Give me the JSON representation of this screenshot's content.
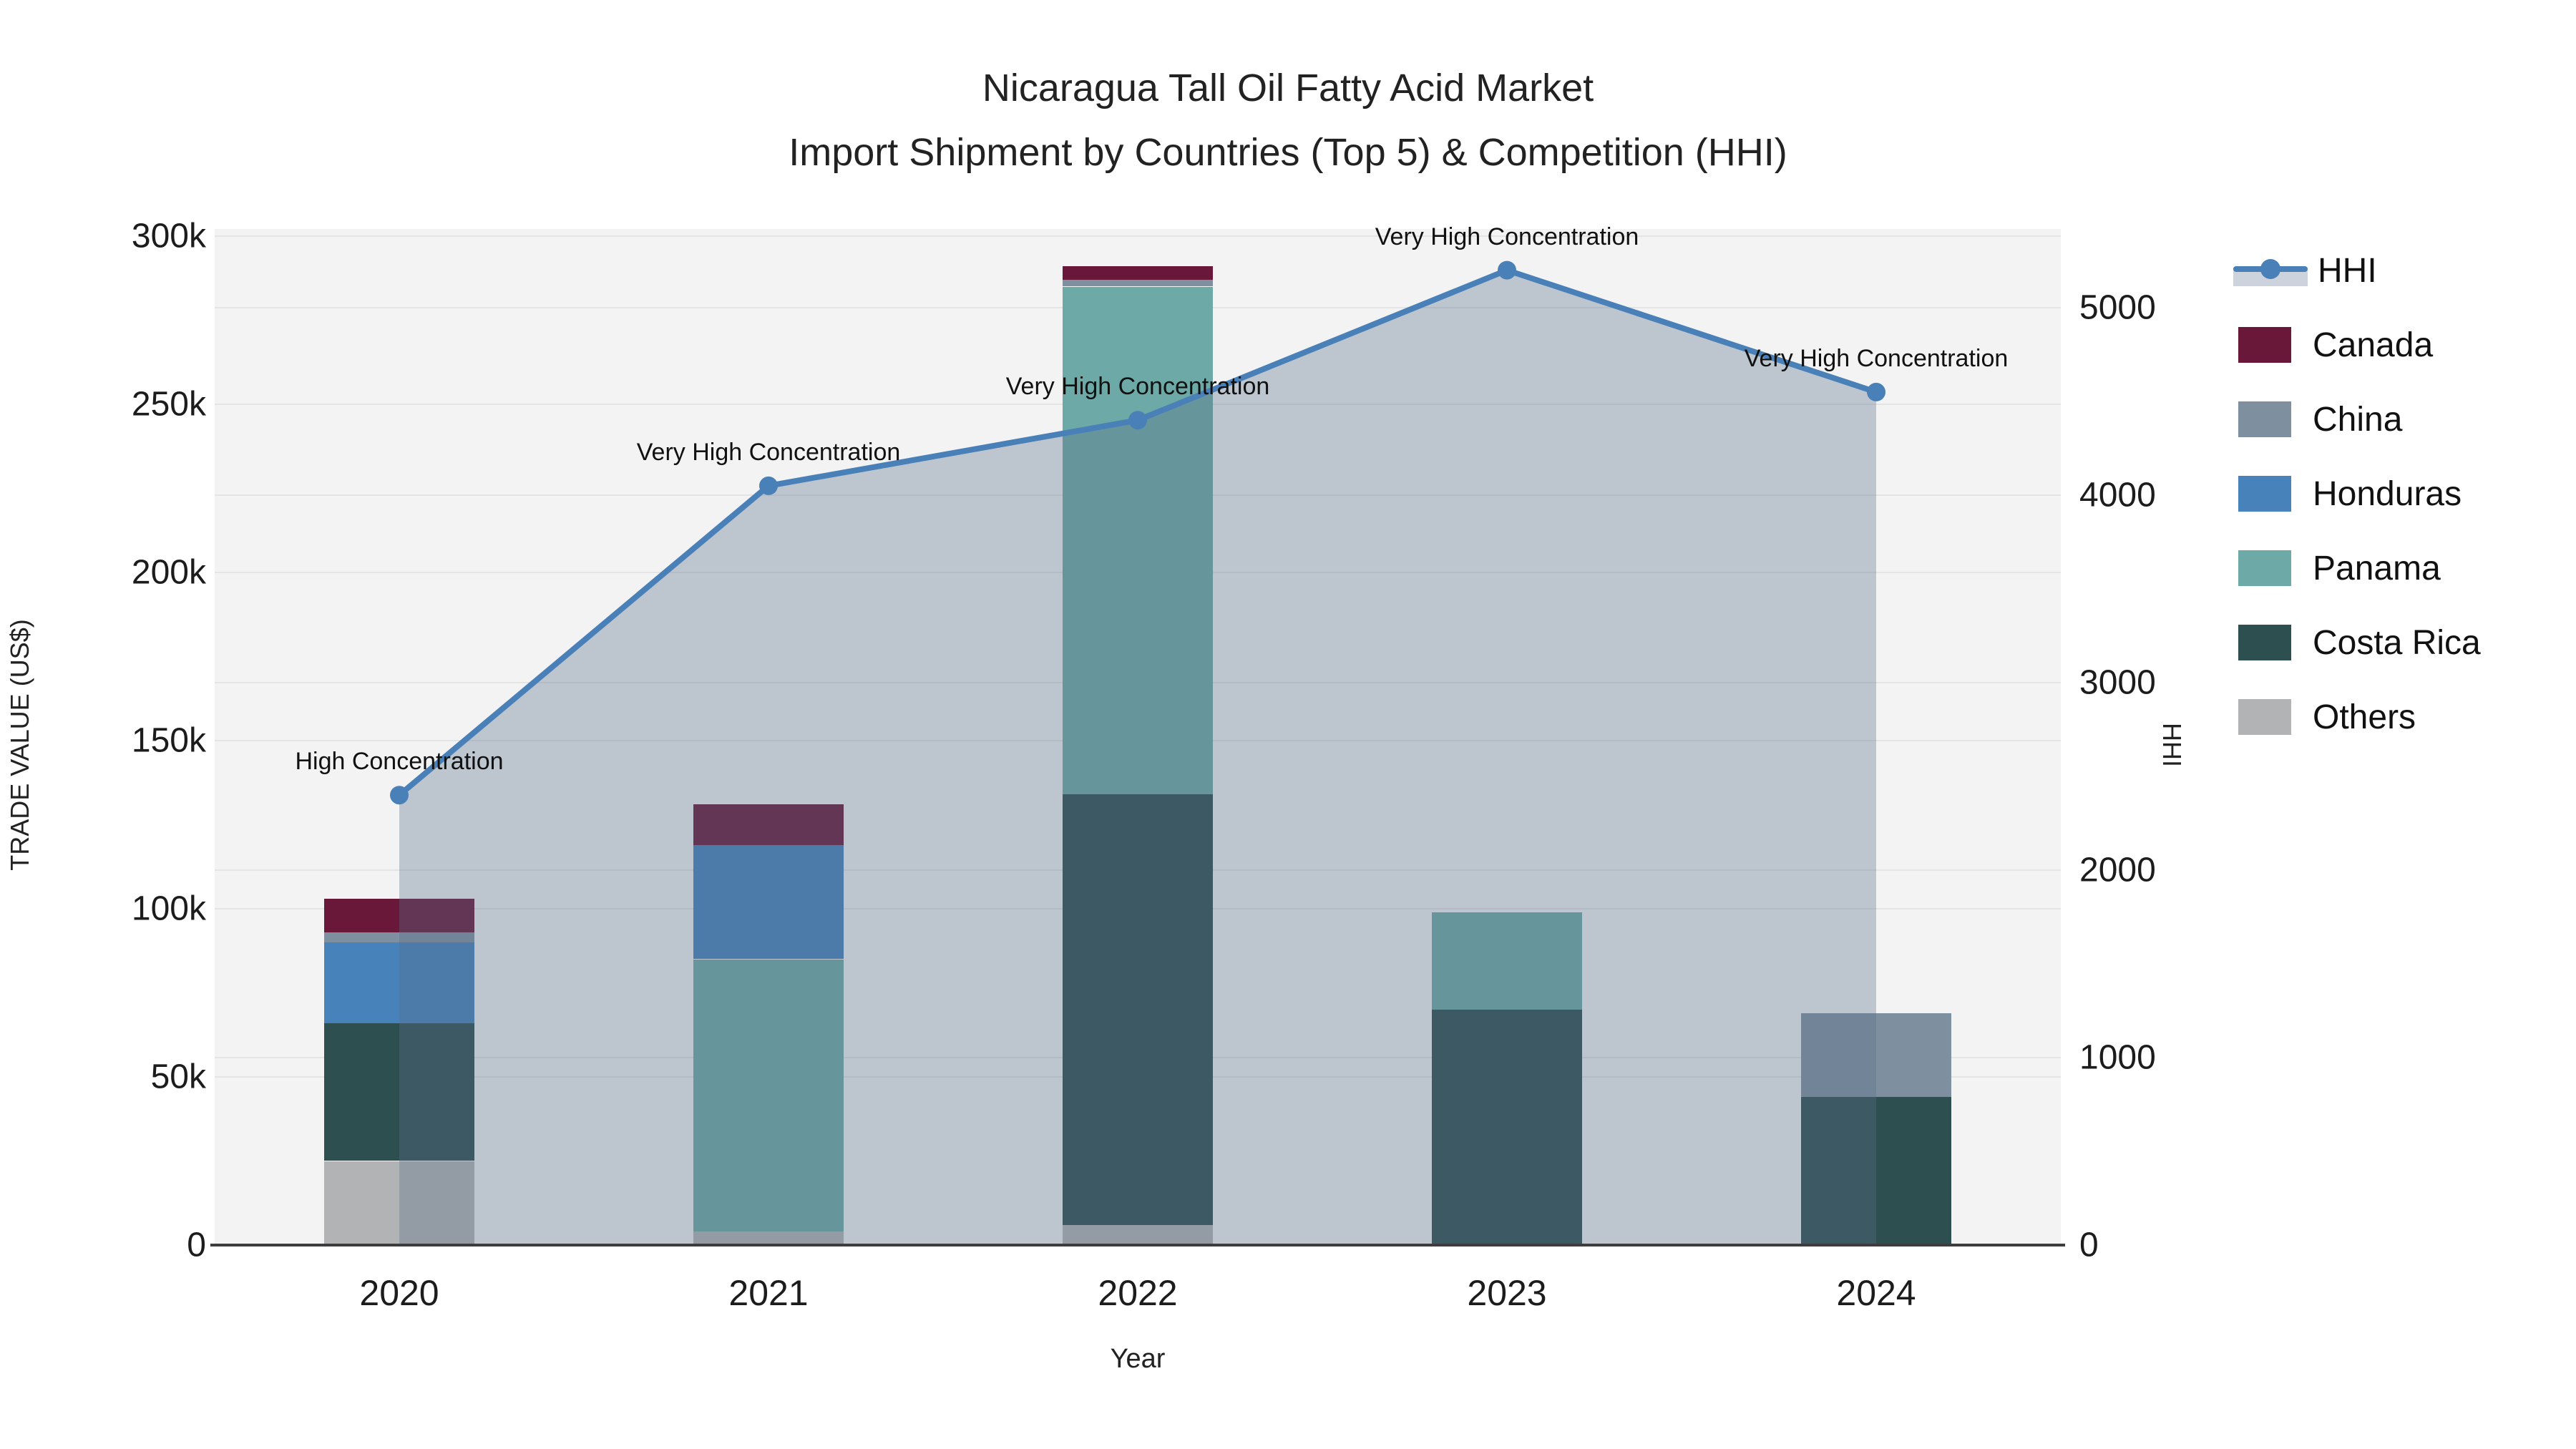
{
  "chart_data": {
    "type": "combo-stacked-bar-line",
    "title_line1": "Nicaragua Tall Oil Fatty Acid Market",
    "title_line2": "Import Shipment by Countries (Top 5) & Competition (HHI)",
    "xlabel": "Year",
    "ylabel_left": "TRADE VALUE (US$)",
    "ylabel_right": "HHI",
    "categories": [
      "2020",
      "2021",
      "2022",
      "2023",
      "2024"
    ],
    "values_unit": "USD thousands",
    "stack_order": [
      "Others",
      "Costa Rica",
      "Panama",
      "Honduras",
      "China",
      "Canada"
    ],
    "bar_series": [
      {
        "name": "Others",
        "values": [
          25,
          4,
          6,
          0,
          0
        ]
      },
      {
        "name": "Costa Rica",
        "values": [
          41,
          0,
          128,
          70,
          44
        ]
      },
      {
        "name": "Panama",
        "values": [
          0,
          81,
          151,
          29,
          0
        ]
      },
      {
        "name": "Honduras",
        "values": [
          24,
          34,
          0,
          0,
          0
        ]
      },
      {
        "name": "China",
        "values": [
          3,
          0,
          2,
          0,
          25
        ]
      },
      {
        "name": "Canada",
        "values": [
          10,
          12,
          4,
          0,
          0
        ]
      }
    ],
    "line_series": {
      "name": "HHI",
      "values": [
        2400,
        4050,
        4400,
        5200,
        4550
      ],
      "annotations": [
        "High Concentration",
        "Very High Concentration",
        "Very High Concentration",
        "Very High Concentration",
        "Very High Concentration"
      ]
    },
    "left_axis": {
      "ticks": [
        "300k",
        "250k",
        "200k",
        "150k",
        "100k",
        "50k",
        "0"
      ],
      "min": 0,
      "max": 300
    },
    "right_axis": {
      "ticks": [
        "5000",
        "4000",
        "3000",
        "2000",
        "1000",
        "0"
      ],
      "min": 0,
      "tick_step": 1000
    },
    "legend_order": [
      "HHI",
      "Canada",
      "China",
      "Honduras",
      "Panama",
      "Costa Rica",
      "Others"
    ],
    "colors": {
      "HHI": "#4a80b8",
      "Canada": "#6a1839",
      "China": "#7e8fa0",
      "Honduras": "#4782ba",
      "Panama": "#6da9a6",
      "Costa Rica": "#2e4f50",
      "Others": "#b2b3b4",
      "area_fill": "rgba(90,112,138,0.35)",
      "plot_bg": "#f3f3f4",
      "gridline": "#e3e4e6"
    },
    "layout": {
      "grid": true,
      "legend_position": "right"
    }
  }
}
